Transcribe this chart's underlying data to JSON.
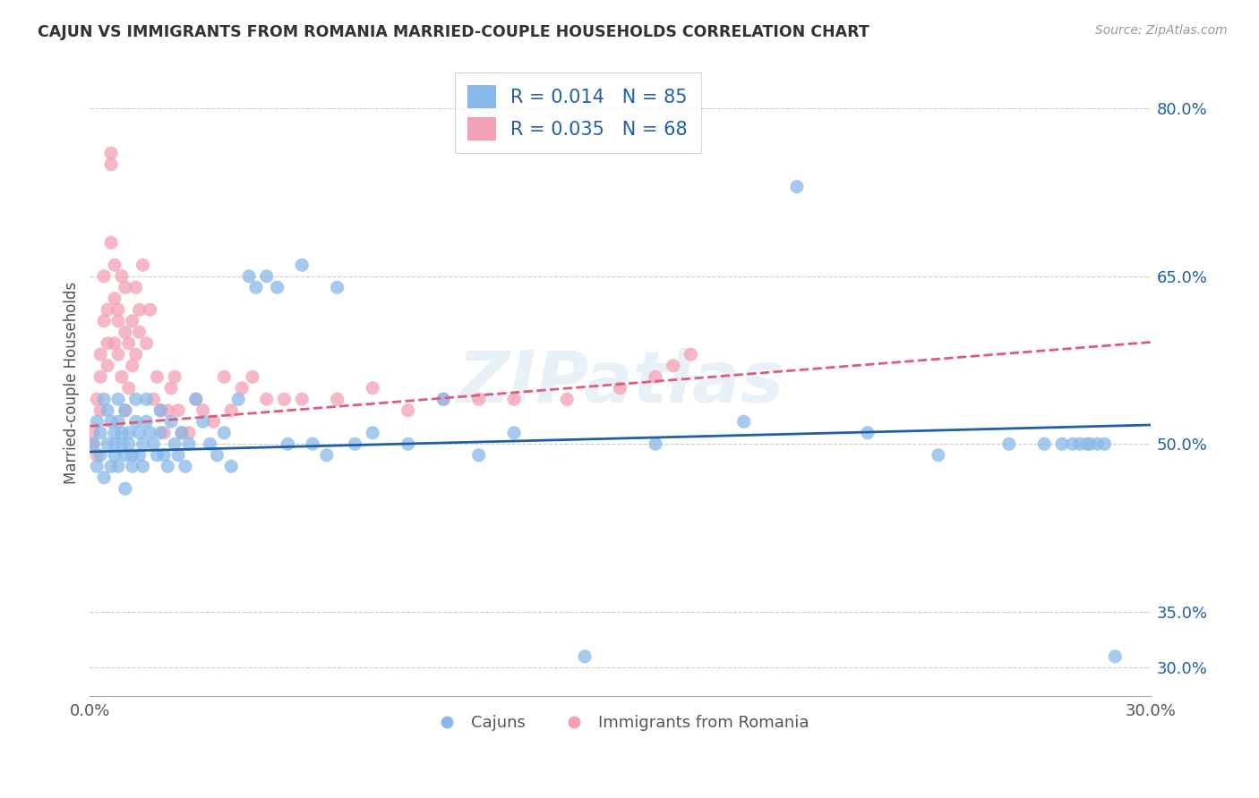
{
  "title": "CAJUN VS IMMIGRANTS FROM ROMANIA MARRIED-COUPLE HOUSEHOLDS CORRELATION CHART",
  "source": "Source: ZipAtlas.com",
  "ylabel": "Married-couple Households",
  "xmin": 0.0,
  "xmax": 0.3,
  "ymin": 0.275,
  "ymax": 0.835,
  "cajun_color": "#89B9E8",
  "romania_color": "#F4A0B5",
  "trendline_cajun_color": "#1F5FA6",
  "trendline_romania_color": "#E05A7A",
  "legend_R_cajun": "0.014",
  "legend_N_cajun": "85",
  "legend_R_romania": "0.035",
  "legend_N_romania": "68",
  "legend_label_cajun": "Cajuns",
  "legend_label_romania": "Immigrants from Romania",
  "watermark": "ZIPatlas",
  "ytick_vals": [
    0.3,
    0.35,
    0.5,
    0.65,
    0.8
  ],
  "ytick_labels": [
    "30.0%",
    "35.0%",
    "50.0%",
    "65.0%",
    "80.0%"
  ],
  "cajun_x": [
    0.001,
    0.002,
    0.002,
    0.003,
    0.003,
    0.004,
    0.004,
    0.005,
    0.005,
    0.006,
    0.006,
    0.007,
    0.007,
    0.007,
    0.008,
    0.008,
    0.008,
    0.009,
    0.009,
    0.01,
    0.01,
    0.01,
    0.011,
    0.011,
    0.012,
    0.012,
    0.013,
    0.013,
    0.014,
    0.014,
    0.015,
    0.015,
    0.016,
    0.016,
    0.017,
    0.018,
    0.019,
    0.02,
    0.02,
    0.021,
    0.022,
    0.023,
    0.024,
    0.025,
    0.026,
    0.027,
    0.028,
    0.03,
    0.032,
    0.034,
    0.036,
    0.038,
    0.04,
    0.042,
    0.045,
    0.047,
    0.05,
    0.053,
    0.056,
    0.06,
    0.063,
    0.067,
    0.07,
    0.075,
    0.08,
    0.09,
    0.1,
    0.11,
    0.12,
    0.14,
    0.16,
    0.185,
    0.2,
    0.22,
    0.24,
    0.26,
    0.27,
    0.275,
    0.278,
    0.28,
    0.282,
    0.283,
    0.285,
    0.287,
    0.29
  ],
  "cajun_y": [
    0.5,
    0.52,
    0.48,
    0.51,
    0.49,
    0.54,
    0.47,
    0.53,
    0.5,
    0.52,
    0.48,
    0.51,
    0.5,
    0.49,
    0.52,
    0.48,
    0.54,
    0.5,
    0.51,
    0.49,
    0.53,
    0.46,
    0.51,
    0.5,
    0.49,
    0.48,
    0.52,
    0.54,
    0.51,
    0.49,
    0.5,
    0.48,
    0.52,
    0.54,
    0.51,
    0.5,
    0.49,
    0.51,
    0.53,
    0.49,
    0.48,
    0.52,
    0.5,
    0.49,
    0.51,
    0.48,
    0.5,
    0.54,
    0.52,
    0.5,
    0.49,
    0.51,
    0.48,
    0.54,
    0.65,
    0.64,
    0.65,
    0.64,
    0.5,
    0.66,
    0.5,
    0.49,
    0.64,
    0.5,
    0.51,
    0.5,
    0.54,
    0.49,
    0.51,
    0.31,
    0.5,
    0.52,
    0.73,
    0.51,
    0.49,
    0.5,
    0.5,
    0.5,
    0.5,
    0.5,
    0.5,
    0.5,
    0.5,
    0.5,
    0.31
  ],
  "romania_x": [
    0.001,
    0.001,
    0.002,
    0.002,
    0.003,
    0.003,
    0.003,
    0.004,
    0.004,
    0.005,
    0.005,
    0.005,
    0.006,
    0.006,
    0.006,
    0.007,
    0.007,
    0.007,
    0.008,
    0.008,
    0.008,
    0.009,
    0.009,
    0.01,
    0.01,
    0.01,
    0.011,
    0.011,
    0.012,
    0.012,
    0.013,
    0.013,
    0.014,
    0.014,
    0.015,
    0.016,
    0.017,
    0.018,
    0.019,
    0.02,
    0.021,
    0.022,
    0.023,
    0.024,
    0.025,
    0.026,
    0.028,
    0.03,
    0.032,
    0.035,
    0.038,
    0.04,
    0.043,
    0.046,
    0.05,
    0.055,
    0.06,
    0.07,
    0.08,
    0.09,
    0.1,
    0.11,
    0.12,
    0.135,
    0.15,
    0.16,
    0.165,
    0.17
  ],
  "romania_y": [
    0.51,
    0.5,
    0.54,
    0.49,
    0.58,
    0.56,
    0.53,
    0.61,
    0.65,
    0.59,
    0.57,
    0.62,
    0.76,
    0.75,
    0.68,
    0.66,
    0.63,
    0.59,
    0.62,
    0.58,
    0.61,
    0.65,
    0.56,
    0.6,
    0.64,
    0.53,
    0.55,
    0.59,
    0.61,
    0.57,
    0.64,
    0.58,
    0.62,
    0.6,
    0.66,
    0.59,
    0.62,
    0.54,
    0.56,
    0.53,
    0.51,
    0.53,
    0.55,
    0.56,
    0.53,
    0.51,
    0.51,
    0.54,
    0.53,
    0.52,
    0.56,
    0.53,
    0.55,
    0.56,
    0.54,
    0.54,
    0.54,
    0.54,
    0.55,
    0.53,
    0.54,
    0.54,
    0.54,
    0.54,
    0.55,
    0.56,
    0.57,
    0.58
  ]
}
